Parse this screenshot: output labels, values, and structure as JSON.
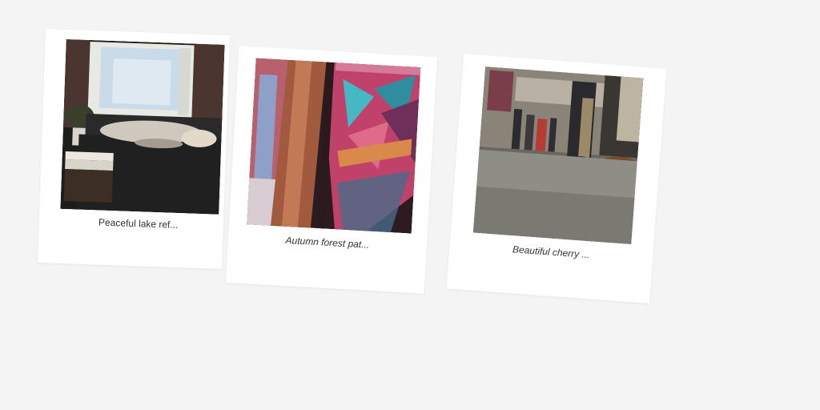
{
  "gallery": {
    "cards": [
      {
        "caption": "Peaceful lake ref...",
        "image": "woman-sleeping-on-sofa-by-window"
      },
      {
        "caption": "Autumn forest pat...",
        "image": "colorful-woven-poncho-closeup"
      },
      {
        "caption": "Beautiful cherry ...",
        "image": "low-angle-subway-car-floor-with-passengers"
      }
    ]
  },
  "colors": {
    "background": "#f4f4f4",
    "card": "#ffffff",
    "caption_text": "#333333"
  }
}
